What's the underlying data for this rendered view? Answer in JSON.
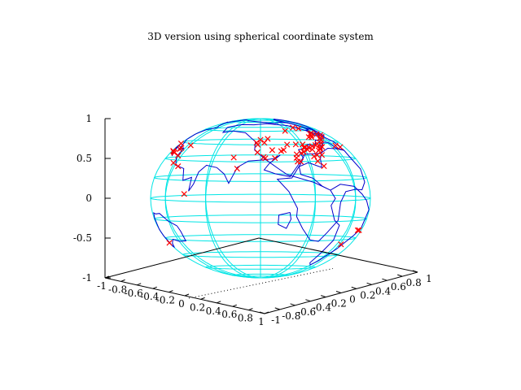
{
  "chart_data": {
    "type": "scatter",
    "title": "3D version using spherical coordinate system",
    "projection": "3d-sphere",
    "z_axis": {
      "range": [
        -1,
        1
      ],
      "ticks": [
        "1",
        "0.5",
        "0",
        "-0.5",
        "-1"
      ]
    },
    "x_axis": {
      "range": [
        -1,
        1
      ],
      "ticks": [
        "-1",
        "-0.8",
        "-0.6",
        "-0.4",
        "-0.2",
        "0",
        "0.2",
        "0.4",
        "0.6",
        "0.8",
        "1"
      ]
    },
    "y_axis": {
      "range": [
        -1,
        1
      ],
      "ticks": [
        "-1",
        "-0.8",
        "-0.6",
        "-0.4",
        "-0.2",
        "0",
        "0.2",
        "0.4",
        "0.6",
        "0.8",
        "1"
      ]
    },
    "view": {
      "rot_x_deg": 60,
      "rot_z_deg": 30
    },
    "grid": true,
    "series": [
      {
        "style": "lines",
        "color": "#00e5e5",
        "kind": "graticule",
        "lat_lines_deg": [
          -75,
          -60,
          -45,
          -30,
          -15,
          0,
          15,
          30,
          45,
          60,
          75
        ],
        "lon_lines_deg": [
          -180,
          -150,
          -120,
          -90,
          -60,
          -30,
          0,
          30,
          60,
          90,
          120,
          150
        ]
      },
      {
        "style": "lines",
        "color": "#0000cc",
        "kind": "coastlines",
        "shapes_lonlat": [
          [
            [
              -165,
              65
            ],
            [
              -150,
              70
            ],
            [
              -130,
              70
            ],
            [
              -110,
              72
            ],
            [
              -95,
              70
            ],
            [
              -80,
              68
            ],
            [
              -65,
              60
            ],
            [
              -60,
              50
            ],
            [
              -70,
              43
            ],
            [
              -75,
              38
            ],
            [
              -80,
              32
            ],
            [
              -82,
              25
            ],
            [
              -90,
              29
            ],
            [
              -97,
              26
            ],
            [
              -97,
              20
            ],
            [
              -90,
              17
            ],
            [
              -85,
              11
            ],
            [
              -80,
              8
            ],
            [
              -90,
              14
            ],
            [
              -105,
              20
            ],
            [
              -110,
              25
            ],
            [
              -117,
              32
            ],
            [
              -124,
              40
            ],
            [
              -124,
              48
            ],
            [
              -135,
              58
            ],
            [
              -150,
              60
            ],
            [
              -160,
              58
            ],
            [
              -165,
              65
            ]
          ],
          [
            [
              -80,
              8
            ],
            [
              -77,
              2
            ],
            [
              -80,
              -3
            ],
            [
              -76,
              -14
            ],
            [
              -71,
              -18
            ],
            [
              -70,
              -30
            ],
            [
              -73,
              -42
            ],
            [
              -73,
              -52
            ],
            [
              -68,
              -55
            ],
            [
              -65,
              -50
            ],
            [
              -58,
              -38
            ],
            [
              -48,
              -27
            ],
            [
              -40,
              -22
            ],
            [
              -35,
              -8
            ],
            [
              -45,
              -1
            ],
            [
              -52,
              4
            ],
            [
              -60,
              10
            ],
            [
              -72,
              12
            ],
            [
              -80,
              8
            ]
          ],
          [
            [
              -10,
              36
            ],
            [
              0,
              37
            ],
            [
              10,
              37
            ],
            [
              20,
              32
            ],
            [
              32,
              31
            ],
            [
              36,
              24
            ],
            [
              43,
              12
            ],
            [
              51,
              11
            ],
            [
              45,
              2
            ],
            [
              40,
              -10
            ],
            [
              40,
              -16
            ],
            [
              35,
              -25
            ],
            [
              27,
              -34
            ],
            [
              20,
              -35
            ],
            [
              17,
              -28
            ],
            [
              12,
              -18
            ],
            [
              13,
              -5
            ],
            [
              9,
              3
            ],
            [
              0,
              5
            ],
            [
              -8,
              5
            ],
            [
              -15,
              11
            ],
            [
              -17,
              21
            ],
            [
              -10,
              30
            ],
            [
              -10,
              36
            ]
          ],
          [
            [
              -10,
              36
            ],
            [
              -8,
              44
            ],
            [
              -2,
              48
            ],
            [
              3,
              51
            ],
            [
              8,
              54
            ],
            [
              10,
              57
            ],
            [
              5,
              58
            ],
            [
              6,
              62
            ],
            [
              15,
              69
            ],
            [
              30,
              70
            ],
            [
              40,
              67
            ],
            [
              60,
              70
            ],
            [
              80,
              73
            ],
            [
              100,
              78
            ],
            [
              115,
              73
            ],
            [
              130,
              71
            ],
            [
              140,
              72
            ],
            [
              160,
              70
            ],
            [
              170,
              66
            ],
            [
              178,
              64
            ],
            [
              160,
              60
            ],
            [
              155,
              56
            ],
            [
              142,
              53
            ],
            [
              140,
              47
            ],
            [
              132,
              43
            ],
            [
              128,
              36
            ],
            [
              122,
              38
            ],
            [
              122,
              30
            ],
            [
              117,
              23
            ],
            [
              108,
              20
            ],
            [
              106,
              11
            ],
            [
              100,
              13
            ],
            [
              101,
              3
            ],
            [
              98,
              8
            ],
            [
              96,
              17
            ],
            [
              92,
              22
            ],
            [
              85,
              20
            ],
            [
              80,
              15
            ],
            [
              77,
              8
            ],
            [
              73,
              20
            ],
            [
              67,
              25
            ],
            [
              57,
              26
            ],
            [
              52,
              27
            ],
            [
              48,
              30
            ],
            [
              55,
              23
            ],
            [
              58,
              18
            ],
            [
              52,
              15
            ],
            [
              44,
              13
            ],
            [
              39,
              21
            ],
            [
              34,
              28
            ],
            [
              35,
              35
            ],
            [
              27,
              37
            ],
            [
              26,
              40
            ],
            [
              20,
              39
            ],
            [
              15,
              45
            ],
            [
              12,
              44
            ],
            [
              16,
              38
            ],
            [
              8,
              43
            ],
            [
              3,
              43
            ],
            [
              0,
              38
            ],
            [
              -10,
              36
            ]
          ],
          [
            [
              115,
              -22
            ],
            [
              122,
              -18
            ],
            [
              130,
              -12
            ],
            [
              137,
              -12
            ],
            [
              142,
              -11
            ],
            [
              145,
              -15
            ],
            [
              150,
              -23
            ],
            [
              153,
              -28
            ],
            [
              150,
              -37
            ],
            [
              145,
              -38
            ],
            [
              138,
              -35
            ],
            [
              130,
              -32
            ],
            [
              123,
              -34
            ],
            [
              115,
              -34
            ],
            [
              114,
              -26
            ],
            [
              115,
              -22
            ]
          ],
          [
            [
              -45,
              60
            ],
            [
              -55,
              63
            ],
            [
              -60,
              70
            ],
            [
              -70,
              78
            ],
            [
              -60,
              82
            ],
            [
              -30,
              83
            ],
            [
              -20,
              78
            ],
            [
              -22,
              70
            ],
            [
              -40,
              65
            ],
            [
              -45,
              60
            ]
          ],
          [
            [
              -5,
              50
            ],
            [
              1,
              51
            ],
            [
              0,
              54
            ],
            [
              -3,
              58
            ],
            [
              -6,
              56
            ],
            [
              -5,
              50
            ]
          ],
          [
            [
              130,
              31
            ],
            [
              135,
              34
            ],
            [
              140,
              36
            ],
            [
              142,
              40
            ],
            [
              140,
              42
            ],
            [
              135,
              35
            ],
            [
              130,
              31
            ]
          ],
          [
            [
              44,
              -13
            ],
            [
              50,
              -15
            ],
            [
              50,
              -22
            ],
            [
              45,
              -25
            ],
            [
              43,
              -18
            ],
            [
              44,
              -13
            ]
          ]
        ]
      },
      {
        "style": "points",
        "marker": "x",
        "color": "#ff0000",
        "kind": "locations",
        "points_lonlat": [
          [
            -123,
            47
          ],
          [
            -122,
            45
          ],
          [
            -122,
            38
          ],
          [
            -118,
            34
          ],
          [
            -117,
            33
          ],
          [
            -112,
            40
          ],
          [
            -106,
            39
          ],
          [
            -104,
            40
          ],
          [
            -97,
            30
          ],
          [
            -95,
            30
          ],
          [
            -90,
            38
          ],
          [
            -87,
            42
          ],
          [
            -84,
            34
          ],
          [
            -80,
            26
          ],
          [
            -77,
            39
          ],
          [
            -75,
            40
          ],
          [
            -74,
            41
          ],
          [
            -71,
            42
          ],
          [
            -80,
            43
          ],
          [
            -88,
            42
          ],
          [
            -84,
            42
          ],
          [
            -86,
            40
          ],
          [
            -100,
            45
          ],
          [
            -93,
            45
          ],
          [
            -117,
            47
          ],
          [
            -120,
            50
          ],
          [
            -114,
            51
          ],
          [
            -73,
            45
          ],
          [
            -76,
            44
          ],
          [
            -81,
            35
          ],
          [
            -77,
            35
          ],
          [
            -97,
            33
          ],
          [
            -96,
            36
          ],
          [
            -111,
            33
          ],
          [
            -82,
            40
          ],
          [
            -83,
            30
          ],
          [
            -46,
            -23
          ],
          [
            -43,
            -23
          ],
          [
            -58,
            -34
          ],
          [
            151,
            -34
          ],
          [
            0,
            51
          ],
          [
            2,
            49
          ],
          [
            13,
            52
          ],
          [
            12,
            42
          ],
          [
            4,
            52
          ],
          [
            139,
            36
          ],
          [
            135,
            35
          ],
          [
            127,
            37
          ],
          [
            121,
            31
          ],
          [
            121,
            25
          ],
          [
            114,
            22
          ],
          [
            116,
            40
          ],
          [
            104,
            1
          ],
          [
            126,
            38
          ],
          [
            131,
            34
          ],
          [
            141,
            43
          ],
          [
            10,
            53
          ],
          [
            18,
            59
          ],
          [
            24,
            60
          ],
          [
            37,
            55
          ],
          [
            8,
            47
          ],
          [
            14,
            50
          ],
          [
            19,
            48
          ],
          [
            16,
            48
          ],
          [
            9,
            45
          ],
          [
            -3,
            40
          ],
          [
            -9,
            39
          ],
          [
            30,
            40
          ],
          [
            76,
            28
          ],
          [
            73,
            19
          ],
          [
            34,
            32
          ]
        ]
      }
    ]
  }
}
